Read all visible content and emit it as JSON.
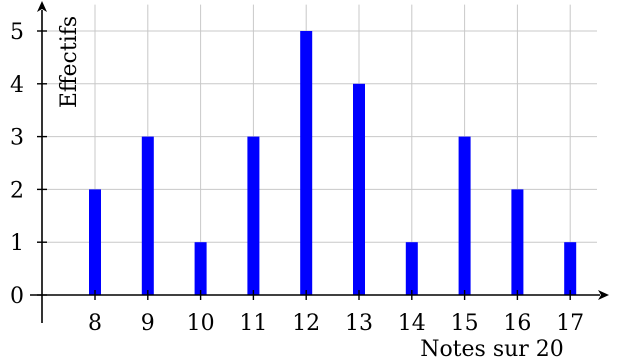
{
  "chart_data": {
    "type": "bar",
    "xlabel": "Notes sur 20",
    "ylabel": "Effectifs",
    "categories": [
      "8",
      "9",
      "10",
      "11",
      "12",
      "13",
      "14",
      "15",
      "16",
      "17"
    ],
    "values": [
      2,
      3,
      1,
      3,
      5,
      4,
      1,
      3,
      2,
      1
    ],
    "xlim": [
      7.2,
      17.7
    ],
    "ylim": [
      0,
      5.5
    ],
    "yticks": [
      "0",
      "1",
      "2",
      "3",
      "4",
      "5"
    ],
    "grid": true,
    "colors": {
      "bar": "#0000ff",
      "grid": "#c8c8c8",
      "axis": "#000000"
    }
  }
}
